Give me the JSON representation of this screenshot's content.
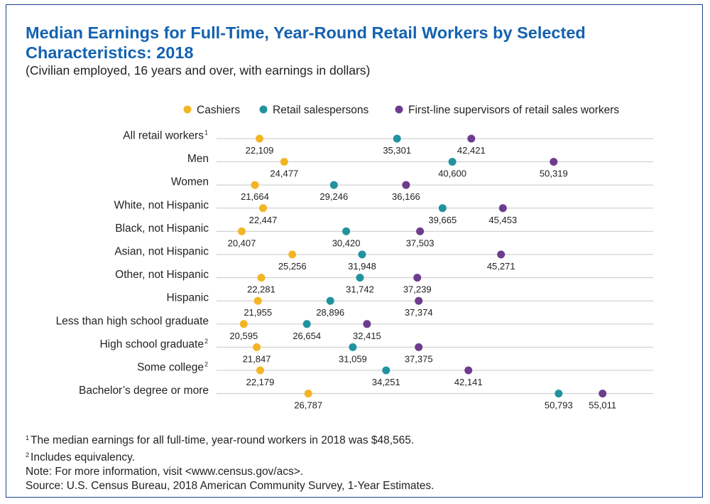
{
  "title": "Median Earnings for Full-Time, Year-Round Retail Workers by Selected Characteristics: 2018",
  "subtitle": "(Civilian employed, 16 years and over, with earnings in dollars)",
  "footnotes": {
    "note1_marker": "1",
    "note1_text": "The median earnings for all full-time, year-round workers in 2018 was $48,565.",
    "note2_marker": "2",
    "note2_text": "Includes equivalency.",
    "note3_text": "Note: For more information, visit <www.census.gov/acs>.",
    "source_text": "Source: U.S. Census Bureau, 2018 American Community Survey, 1-Year Estimates."
  },
  "colors": {
    "title": "#1462b0",
    "cashiers": "#f2b624",
    "salespersons": "#21939e",
    "supervisors": "#6e3c8e",
    "gridline": "#c8c8c8",
    "border": "#1b3f8b"
  },
  "chart_data": {
    "type": "scatter",
    "orientation": "dot-plot",
    "legend_position": "top-right",
    "grid": "horizontal row lines",
    "xlim": [
      20000,
      56000
    ],
    "categories": [
      {
        "label": "All retail workers",
        "superscript": "1"
      },
      {
        "label": "Men",
        "superscript": ""
      },
      {
        "label": "Women",
        "superscript": ""
      },
      {
        "label": "White, not Hispanic",
        "superscript": ""
      },
      {
        "label": "Black, not Hispanic",
        "superscript": ""
      },
      {
        "label": "Asian, not Hispanic",
        "superscript": ""
      },
      {
        "label": "Other, not Hispanic",
        "superscript": ""
      },
      {
        "label": "Hispanic",
        "superscript": ""
      },
      {
        "label": "Less than high school graduate",
        "superscript": ""
      },
      {
        "label": "High school graduate",
        "superscript": "2"
      },
      {
        "label": "Some college",
        "superscript": "2"
      },
      {
        "label": "Bachelor’s degree or more",
        "superscript": ""
      }
    ],
    "series": [
      {
        "name": "Cashiers",
        "color_key": "cashiers",
        "values": [
          22109,
          24477,
          21664,
          22447,
          20407,
          25256,
          22281,
          21955,
          20595,
          21847,
          22179,
          26787
        ],
        "labels": [
          "22,109",
          "24,477",
          "21,664",
          "22,447",
          "20,407",
          "25,256",
          "22,281",
          "21,955",
          "20,595",
          "21,847",
          "22,179",
          "26,787"
        ]
      },
      {
        "name": "Retail salespersons",
        "color_key": "salespersons",
        "values": [
          35301,
          40600,
          29246,
          39665,
          30420,
          31948,
          31742,
          28896,
          26654,
          31059,
          34251,
          50793
        ],
        "labels": [
          "35,301",
          "40,600",
          "29,246",
          "39,665",
          "30,420",
          "31,948",
          "31,742",
          "28,896",
          "26,654",
          "31,059",
          "34,251",
          "50,793"
        ]
      },
      {
        "name": "First-line supervisors of retail sales workers",
        "color_key": "supervisors",
        "values": [
          42421,
          50319,
          36166,
          45453,
          37503,
          45271,
          37239,
          37374,
          32415,
          37375,
          42141,
          55011
        ],
        "labels": [
          "42,421",
          "50,319",
          "36,166",
          "45,453",
          "37,503",
          "45,271",
          "37,239",
          "37,374",
          "32,415",
          "37,375",
          "42,141",
          "55,011"
        ]
      }
    ]
  }
}
